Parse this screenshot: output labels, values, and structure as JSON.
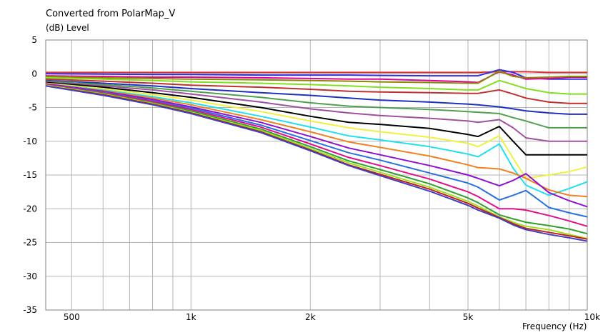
{
  "chart_data": {
    "type": "line",
    "title": "Converted from PolarMap_V",
    "ylabel": "(dB)  Level",
    "xlabel": "Frequency  (Hz)",
    "x_scale": "log",
    "xlim": [
      430,
      10000
    ],
    "ylim": [
      -35,
      5
    ],
    "grid": true,
    "y_ticks": [
      5,
      0,
      -5,
      -10,
      -15,
      -20,
      -25,
      -30,
      -35
    ],
    "y_tick_labels": [
      "5",
      "0",
      "-5",
      "-10",
      "-15",
      "-20",
      "-25",
      "-30",
      "-35"
    ],
    "x_ticks": [
      500,
      1000,
      2000,
      5000,
      10000
    ],
    "x_tick_labels": [
      "500",
      "1k",
      "2k",
      "5k",
      "10k"
    ],
    "x": [
      430,
      600,
      800,
      1000,
      1500,
      2000,
      2500,
      3000,
      4000,
      5000,
      5300,
      6000,
      6500,
      7000,
      8000,
      9000,
      10000
    ],
    "series": [
      {
        "color": "#e03030",
        "values": [
          0.2,
          0.2,
          0.2,
          0.2,
          0.2,
          0.2,
          0.2,
          0.2,
          0.2,
          0.2,
          0.2,
          0.3,
          0.3,
          0.3,
          0.2,
          0.2,
          0.2
        ]
      },
      {
        "color": "#3030e0",
        "values": [
          0.0,
          -0.05,
          -0.1,
          -0.1,
          -0.2,
          -0.2,
          -0.2,
          -0.25,
          -0.3,
          -0.3,
          -0.3,
          0.6,
          0.2,
          -0.6,
          -0.8,
          -0.8,
          -0.8
        ]
      },
      {
        "color": "#e000a0",
        "values": [
          -0.3,
          -0.4,
          -0.5,
          -0.5,
          -0.6,
          -0.7,
          -0.8,
          -0.8,
          -1.0,
          -1.2,
          -1.3,
          0.3,
          -0.2,
          -0.8,
          -0.7,
          -0.5,
          -0.5
        ]
      },
      {
        "color": "#8a8a00",
        "values": [
          -0.4,
          -0.6,
          -0.7,
          -0.8,
          -0.9,
          -1.0,
          -1.1,
          -1.2,
          -1.3,
          -1.4,
          -1.4,
          0.4,
          -0.4,
          -0.6,
          -0.5,
          -0.4,
          -0.4
        ]
      },
      {
        "color": "#80e020",
        "values": [
          -0.6,
          -0.8,
          -1.0,
          -1.2,
          -1.4,
          -1.6,
          -1.8,
          -2.0,
          -2.2,
          -2.4,
          -2.4,
          -1.0,
          -1.6,
          -2.2,
          -2.8,
          -3.0,
          -3.0
        ]
      },
      {
        "color": "#c03030",
        "values": [
          -0.8,
          -1.1,
          -1.4,
          -1.7,
          -2.0,
          -2.3,
          -2.6,
          -2.7,
          -2.8,
          -2.9,
          -2.9,
          -2.4,
          -3.0,
          -3.6,
          -4.2,
          -4.4,
          -4.4
        ]
      },
      {
        "color": "#2030c0",
        "values": [
          -1.0,
          -1.4,
          -1.8,
          -2.2,
          -2.8,
          -3.2,
          -3.6,
          -3.9,
          -4.2,
          -4.5,
          -4.6,
          -4.9,
          -5.2,
          -5.5,
          -5.8,
          -6.0,
          -6.0
        ]
      },
      {
        "color": "#50a050",
        "values": [
          -1.1,
          -1.6,
          -2.1,
          -2.6,
          -3.5,
          -4.3,
          -4.8,
          -5.0,
          -5.3,
          -5.6,
          -5.7,
          -5.9,
          -6.5,
          -7.0,
          -8.0,
          -8.0,
          -8.0
        ]
      },
      {
        "color": "#a050a0",
        "values": [
          -1.2,
          -1.8,
          -2.4,
          -3.0,
          -4.2,
          -5.2,
          -5.8,
          -6.2,
          -6.6,
          -7.0,
          -7.2,
          -6.8,
          -8.0,
          -9.5,
          -10.0,
          -10.0,
          -10.0
        ]
      },
      {
        "color": "#000000",
        "values": [
          -1.3,
          -2.0,
          -2.8,
          -3.5,
          -5.0,
          -6.3,
          -7.2,
          -7.5,
          -8.1,
          -9.0,
          -9.3,
          -7.8,
          -10.0,
          -12.0,
          -12.0,
          -12.0,
          -12.0
        ]
      },
      {
        "color": "#f0f040",
        "values": [
          -1.4,
          -2.2,
          -3.1,
          -3.9,
          -5.6,
          -7.0,
          -8.0,
          -8.6,
          -9.4,
          -10.3,
          -10.8,
          -9.2,
          -12.5,
          -15.5,
          -15.0,
          -14.5,
          -13.8
        ]
      },
      {
        "color": "#20e0f0",
        "values": [
          -1.5,
          -2.4,
          -3.4,
          -4.3,
          -6.3,
          -7.9,
          -9.2,
          -9.8,
          -10.8,
          -11.9,
          -12.3,
          -10.4,
          -14.0,
          -16.5,
          -18.0,
          -17.0,
          -16.0
        ]
      },
      {
        "color": "#f08020",
        "values": [
          -1.5,
          -2.5,
          -3.6,
          -4.6,
          -6.8,
          -8.6,
          -10.1,
          -10.9,
          -12.2,
          -13.5,
          -13.9,
          -14.1,
          -14.7,
          -15.5,
          -17.2,
          -18.0,
          -18.2
        ]
      },
      {
        "color": "#9010d0",
        "values": [
          -1.5,
          -2.6,
          -3.8,
          -4.9,
          -7.2,
          -9.3,
          -11.0,
          -12.0,
          -13.6,
          -15.0,
          -15.5,
          -16.6,
          -15.8,
          -14.8,
          -17.6,
          -18.8,
          -19.7
        ]
      },
      {
        "color": "#2870e0",
        "values": [
          -1.6,
          -2.7,
          -4.0,
          -5.1,
          -7.6,
          -9.9,
          -11.7,
          -12.8,
          -14.7,
          -16.2,
          -16.8,
          -18.7,
          -18.0,
          -17.3,
          -19.8,
          -20.6,
          -21.2
        ]
      },
      {
        "color": "#e0108a",
        "values": [
          -1.6,
          -2.8,
          -4.1,
          -5.3,
          -7.9,
          -10.4,
          -12.4,
          -13.6,
          -15.6,
          -17.5,
          -18.2,
          -20.0,
          -20.0,
          -20.2,
          -21.0,
          -21.8,
          -22.6
        ]
      },
      {
        "color": "#30a030",
        "values": [
          -1.7,
          -2.9,
          -4.3,
          -5.5,
          -8.2,
          -10.8,
          -12.9,
          -14.2,
          -16.3,
          -18.4,
          -19.1,
          -20.9,
          -21.5,
          -22.0,
          -22.5,
          -23.0,
          -23.7
        ]
      },
      {
        "color": "#a0e020",
        "values": [
          -1.7,
          -3.0,
          -4.4,
          -5.7,
          -8.4,
          -11.1,
          -13.2,
          -14.6,
          -16.8,
          -18.9,
          -19.6,
          -21.2,
          -22.0,
          -22.6,
          -23.1,
          -23.8,
          -24.4
        ]
      },
      {
        "color": "#c02020",
        "values": [
          -1.8,
          -3.1,
          -4.5,
          -5.8,
          -8.6,
          -11.3,
          -13.5,
          -14.9,
          -17.1,
          -19.2,
          -19.9,
          -21.3,
          -22.2,
          -22.9,
          -23.5,
          -24.0,
          -24.5
        ]
      },
      {
        "color": "#4040c0",
        "values": [
          -1.8,
          -3.2,
          -4.6,
          -5.9,
          -8.7,
          -11.4,
          -13.6,
          -15.1,
          -17.4,
          -19.5,
          -20.2,
          -21.4,
          -22.4,
          -23.1,
          -23.8,
          -24.3,
          -24.8
        ]
      }
    ]
  }
}
